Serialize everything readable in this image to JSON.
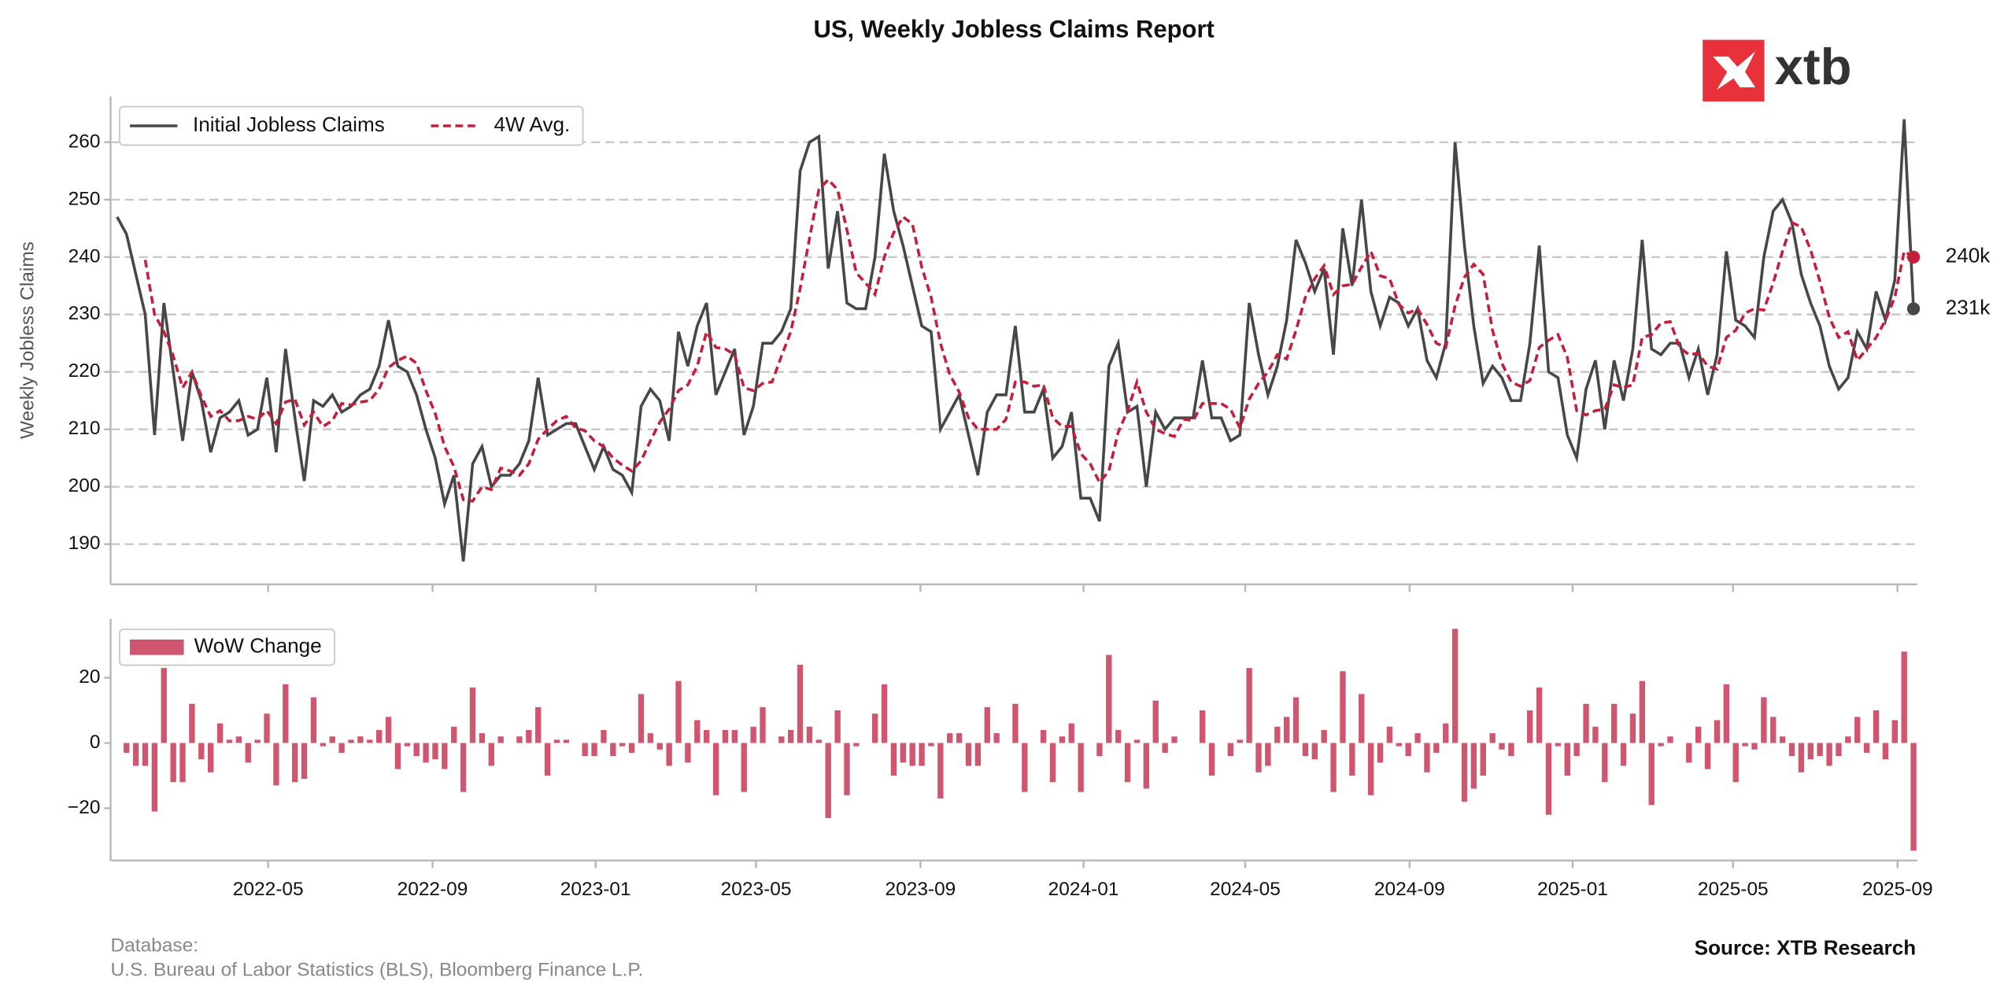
{
  "title": "US, Weekly Jobless Claims Report",
  "logo": "xtb",
  "footer": {
    "database": "Database:",
    "database_sources": "U.S. Bureau of Labor Statistics (BLS), Bloomberg Finance L.P.",
    "source": "Source: XTB Research"
  },
  "chart_data": [
    {
      "type": "line",
      "y_label": "Weekly Jobless Claims",
      "xlim": [
        -0.7,
        192.4
      ],
      "ylim": [
        183,
        268
      ],
      "yticks": [
        190,
        200,
        210,
        220,
        230,
        240,
        250,
        260
      ],
      "grid": true,
      "legend": "upper left",
      "series": [
        {
          "name": "Initial Jobless Claims",
          "color": "#474747",
          "dashed": false,
          "end_label": "231k",
          "values": [
            247,
            244,
            237,
            230,
            209,
            232,
            220,
            208,
            220,
            215,
            206,
            212,
            213,
            215,
            209,
            210,
            219,
            206,
            224,
            212,
            201,
            215,
            214,
            216,
            213,
            214,
            216,
            217,
            221,
            229,
            221,
            220,
            216,
            210,
            205,
            197,
            202,
            187,
            204,
            207,
            200,
            202,
            202,
            204,
            208,
            219,
            209,
            210,
            211,
            211,
            207,
            203,
            207,
            203,
            202,
            199,
            214,
            217,
            215,
            208,
            227,
            221,
            228,
            232,
            216,
            220,
            224,
            209,
            214,
            225,
            225,
            227,
            231,
            255,
            260,
            261,
            238,
            248,
            232,
            231,
            231,
            240,
            258,
            248,
            242,
            235,
            228,
            227,
            210,
            213,
            216,
            209,
            202,
            213,
            216,
            216,
            228,
            213,
            213,
            217,
            205,
            207,
            213,
            198,
            198,
            194,
            221,
            225,
            213,
            214,
            200,
            213,
            210,
            212,
            212,
            212,
            222,
            212,
            212,
            208,
            209,
            232,
            223,
            216,
            221,
            229,
            243,
            239,
            234,
            238,
            223,
            245,
            235,
            250,
            234,
            228,
            233,
            232,
            228,
            231,
            222,
            219,
            225,
            260,
            242,
            228,
            218,
            221,
            219,
            215,
            215,
            225,
            242,
            220,
            219,
            209,
            205,
            217,
            222,
            210,
            222,
            215,
            224,
            243,
            224,
            223,
            225,
            225,
            219,
            224,
            216,
            223,
            241,
            229,
            228,
            226,
            240,
            248,
            250,
            246,
            237,
            232,
            228,
            221,
            217,
            219,
            227,
            224,
            234,
            229,
            236,
            264,
            231
          ]
        },
        {
          "name": "4W Avg.",
          "color": "#c41e3a",
          "dashed": true,
          "end_label": "240k",
          "values": [
            null,
            null,
            null,
            239.5,
            230,
            227,
            222.75,
            217.25,
            220,
            215.75,
            212.25,
            213.25,
            211.5,
            211.5,
            212.25,
            211.75,
            213.25,
            211,
            214.75,
            215.25,
            210.75,
            213,
            210.5,
            211.5,
            214.5,
            214.25,
            214.75,
            215,
            217,
            220.75,
            222,
            222.75,
            221.5,
            216.75,
            212.75,
            207,
            203.5,
            197.75,
            197.5,
            200,
            199.5,
            203.25,
            202.75,
            202,
            204,
            208.25,
            210,
            211.5,
            212.25,
            210.25,
            209.75,
            208,
            207,
            205,
            203.75,
            202.75,
            204.5,
            208,
            211.25,
            213.5,
            216.75,
            217.75,
            221,
            227,
            224.25,
            224,
            223,
            217.25,
            216.75,
            218,
            218.25,
            222.75,
            227,
            234.5,
            243.25,
            251.75,
            253.5,
            251.75,
            244.75,
            237.25,
            235.5,
            233.5,
            240,
            244.25,
            247,
            245.75,
            238.25,
            233,
            225,
            219.5,
            216.5,
            212,
            210,
            210,
            210,
            211.75,
            218.25,
            218.25,
            217.5,
            217.75,
            212,
            210.5,
            210.5,
            205.75,
            204,
            200.75,
            202.75,
            209.5,
            213.25,
            218.25,
            213,
            210,
            209.25,
            208.75,
            211.75,
            211.5,
            214.5,
            214.5,
            214.5,
            213.5,
            210.25,
            215.25,
            218,
            220,
            223,
            222.25,
            227.25,
            233,
            236.25,
            238.5,
            233.5,
            235,
            235.25,
            238.25,
            241,
            236.75,
            236.25,
            231.75,
            230.25,
            231,
            228.25,
            225,
            224.25,
            231.5,
            236.5,
            238.75,
            237,
            227.25,
            221.5,
            218.25,
            217.5,
            218.5,
            224.25,
            225.5,
            226.5,
            222.5,
            213.25,
            212.5,
            213.25,
            213.5,
            217.75,
            217.25,
            217.75,
            226,
            226.5,
            228.5,
            228.75,
            224.25,
            223,
            223.25,
            221,
            220.5,
            226,
            227.25,
            230.25,
            231,
            230.75,
            235.5,
            241,
            246,
            245.25,
            241.25,
            235.75,
            229.5,
            226,
            227,
            222,
            224,
            226,
            229,
            233,
            241,
            240
          ]
        }
      ]
    },
    {
      "type": "bar",
      "xlim": [
        -0.7,
        192.4
      ],
      "ylim": [
        -36,
        38
      ],
      "yticks": [
        {
          "value": -20,
          "label": "−20"
        },
        0,
        20
      ],
      "legend": "upper left",
      "xticks": [
        {
          "value": 16.14,
          "label": "2022-05"
        },
        {
          "value": 33.71,
          "label": "2022-09"
        },
        {
          "value": 51.14,
          "label": "2023-01"
        },
        {
          "value": 68.29,
          "label": "2023-05"
        },
        {
          "value": 85.86,
          "label": "2023-09"
        },
        {
          "value": 103.29,
          "label": "2024-01"
        },
        {
          "value": 120.57,
          "label": "2024-05"
        },
        {
          "value": 138.14,
          "label": "2024-09"
        },
        {
          "value": 155.57,
          "label": "2025-01"
        },
        {
          "value": 172.71,
          "label": "2025-05"
        },
        {
          "value": 190.29,
          "label": "2025-09"
        }
      ],
      "series": [
        {
          "name": "WoW Change",
          "color": "#d0566f",
          "values": [
            null,
            -3,
            -7,
            -7,
            -21,
            23,
            -12,
            -12,
            12,
            -5,
            -9,
            6,
            1,
            2,
            -6,
            1,
            9,
            -13,
            18,
            -12,
            -11,
            14,
            -1,
            2,
            -3,
            1,
            2,
            1,
            4,
            8,
            -8,
            -1,
            -4,
            -6,
            -5,
            -8,
            5,
            -15,
            17,
            3,
            -7,
            2,
            0,
            2,
            4,
            11,
            -10,
            1,
            1,
            0,
            -4,
            -4,
            4,
            -4,
            -1,
            -3,
            15,
            3,
            -2,
            -7,
            19,
            -6,
            7,
            4,
            -16,
            4,
            4,
            -15,
            5,
            11,
            0,
            2,
            4,
            24,
            5,
            1,
            -23,
            10,
            -16,
            -1,
            0,
            9,
            18,
            -10,
            -6,
            -7,
            -7,
            -1,
            -17,
            3,
            3,
            -7,
            -7,
            11,
            3,
            0,
            12,
            -15,
            0,
            4,
            -12,
            2,
            6,
            -15,
            0,
            -4,
            27,
            4,
            -12,
            1,
            -14,
            13,
            -3,
            2,
            0,
            0,
            10,
            -10,
            0,
            -4,
            1,
            23,
            -9,
            -7,
            5,
            8,
            14,
            -4,
            -5,
            4,
            -15,
            22,
            -10,
            15,
            -16,
            -6,
            5,
            -1,
            -4,
            3,
            -9,
            -3,
            6,
            35,
            -18,
            -14,
            -10,
            3,
            -2,
            -4,
            0,
            10,
            17,
            -22,
            -1,
            -10,
            -4,
            12,
            5,
            -12,
            12,
            -7,
            9,
            19,
            -19,
            -1,
            2,
            0,
            -6,
            5,
            -8,
            7,
            18,
            -12,
            -1,
            -2,
            14,
            8,
            2,
            -4,
            -9,
            -5,
            -4,
            -7,
            -4,
            2,
            8,
            -3,
            10,
            -5,
            7,
            28,
            -33
          ]
        }
      ]
    }
  ]
}
